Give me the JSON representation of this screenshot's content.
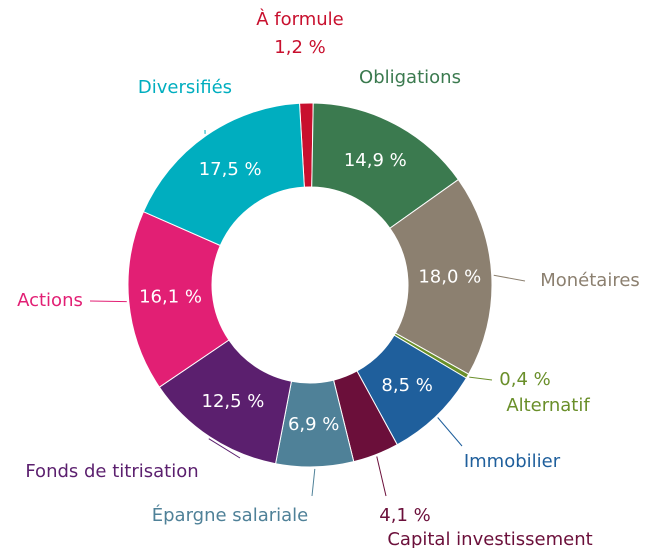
{
  "chart_data": {
    "type": "donut",
    "categories": [
      "À formule",
      "Obligations",
      "Monétaires",
      "Alternatif",
      "Immobilier",
      "Capital investissement",
      "Épargne salariale",
      "Fonds de titrisation",
      "Actions",
      "Diversifiés"
    ],
    "values": [
      1.2,
      14.9,
      18.0,
      0.4,
      8.5,
      4.1,
      6.9,
      12.5,
      16.1,
      17.5
    ],
    "value_labels": [
      "1,2 %",
      "14,9 %",
      "18,0 %",
      "0,4 %",
      "8,5 %",
      "4,1 %",
      "6,9 %",
      "12,5 %",
      "16,1 %",
      "17,5 %"
    ],
    "colors": [
      "#c8102e",
      "#3b7a4f",
      "#8c8070",
      "#6a8f2a",
      "#1f5f9c",
      "#6b0f3a",
      "#4f8198",
      "#5b1f6e",
      "#e21f74",
      "#00aebf"
    ]
  }
}
